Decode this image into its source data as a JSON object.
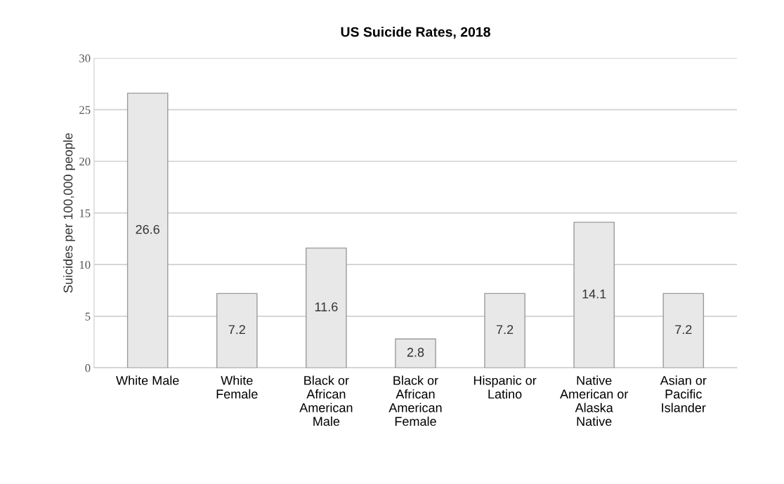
{
  "chart_data": {
    "type": "bar",
    "title": "US Suicide Rates, 2018",
    "ylabel": "Suicides per 100,000 people",
    "categories": [
      "White Male",
      "White\nFemale",
      "Black or\nAfrican\nAmerican\nMale",
      "Black or\nAfrican\nAmerican\nFemale",
      "Hispanic or\nLatino",
      "Native\nAmerican or\nAlaska\nNative",
      "Asian or\nPacific\nIslander"
    ],
    "values": [
      26.6,
      7.2,
      11.6,
      2.8,
      7.2,
      14.1,
      7.2
    ],
    "color": "#e8e8e8",
    "ylim": [
      0,
      30
    ],
    "yticks": [
      0,
      5,
      10,
      15,
      20,
      25,
      30
    ],
    "grid": "y",
    "data_labels": true
  }
}
